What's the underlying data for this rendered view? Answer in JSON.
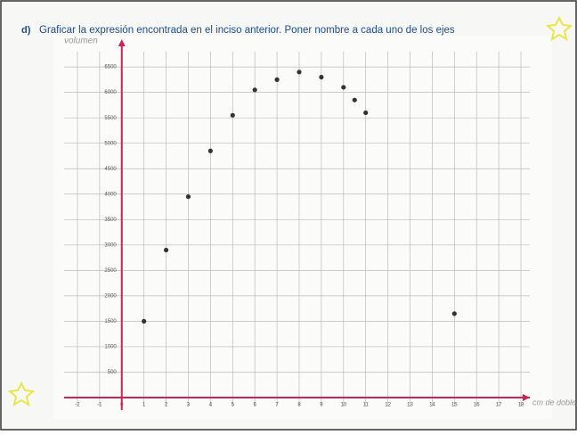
{
  "question": {
    "label": "d)",
    "text": "Graficar la expresión encontrada en el inciso anterior. Poner nombre a cada uno de los ejes"
  },
  "chart_data": {
    "type": "scatter",
    "y_label": "volumen",
    "x_label": "cm de doblez",
    "x": [
      1,
      2,
      3,
      4,
      5,
      6,
      7,
      8,
      9,
      10,
      10.5,
      11,
      15
    ],
    "values": [
      1500,
      2900,
      3950,
      4850,
      5550,
      6050,
      6250,
      6400,
      6300,
      6100,
      5850,
      5600,
      1650
    ],
    "color": "#333333",
    "xlim": [
      -2.6,
      18.4
    ],
    "ylim": [
      0,
      6800
    ],
    "xticks": [
      -2,
      -1,
      0,
      1,
      2,
      3,
      4,
      5,
      6,
      7,
      8,
      9,
      10,
      11,
      12,
      13,
      14,
      15,
      16,
      17,
      18
    ],
    "yticks": [
      500,
      1000,
      1500,
      2000,
      2500,
      3000,
      3500,
      4000,
      4500,
      5000,
      5500,
      6000,
      6500
    ],
    "grid": true,
    "axis_color": "#c8245a"
  }
}
